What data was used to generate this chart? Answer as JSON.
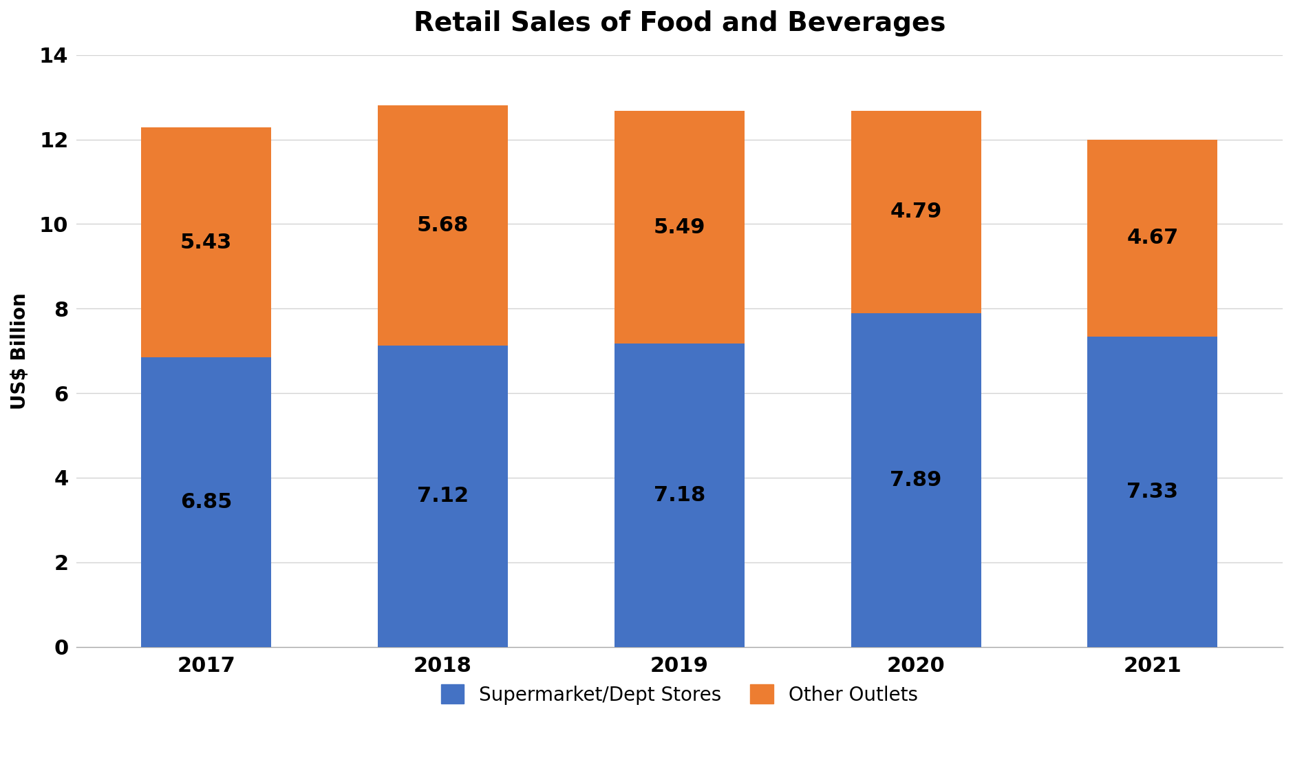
{
  "title": "Retail Sales of Food and Beverages",
  "xlabel": "",
  "ylabel": "US$ Billion",
  "categories": [
    "2017",
    "2018",
    "2019",
    "2020",
    "2021"
  ],
  "supermarket_values": [
    6.85,
    7.12,
    7.18,
    7.89,
    7.33
  ],
  "other_values": [
    5.43,
    5.68,
    5.49,
    4.79,
    4.67
  ],
  "supermarket_color": "#4472C4",
  "other_color": "#ED7D31",
  "background_color": "#FFFFFF",
  "grid_color": "#D3D3D3",
  "ylim": [
    0,
    14
  ],
  "yticks": [
    0,
    2,
    4,
    6,
    8,
    10,
    12,
    14
  ],
  "bar_width": 0.55,
  "title_fontsize": 28,
  "axis_label_fontsize": 20,
  "tick_fontsize": 22,
  "annotation_fontsize": 22,
  "legend_fontsize": 20,
  "legend_label_1": "Supermarket/Dept Stores",
  "legend_label_2": "Other Outlets"
}
